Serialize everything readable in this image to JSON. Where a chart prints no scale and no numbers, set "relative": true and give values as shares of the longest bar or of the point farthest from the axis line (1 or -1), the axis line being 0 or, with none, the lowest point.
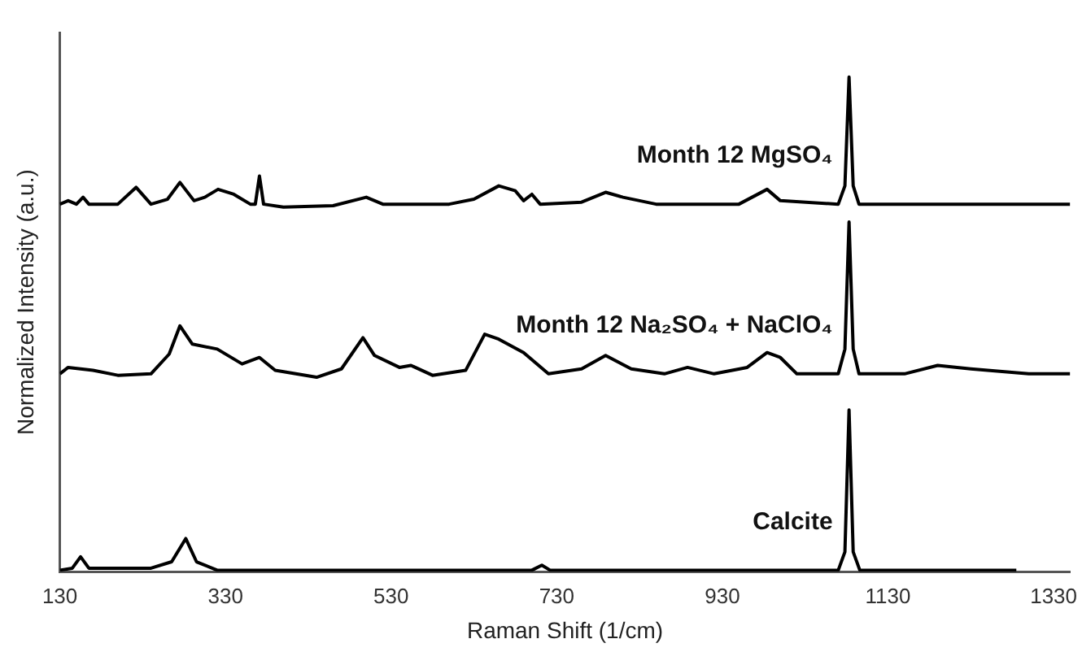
{
  "chart_data": {
    "type": "line",
    "xlabel": "Raman Shift (1/cm)",
    "ylabel": "Normalized Intensity (a.u.)",
    "relative": true,
    "xlim": [
      130,
      1350
    ],
    "xticks": [
      130,
      330,
      530,
      730,
      930,
      1130,
      1330
    ],
    "grid": false,
    "legend": false,
    "marker": "none",
    "line_style": "solid",
    "series": [
      {
        "name": "Month 12 MgSO₄",
        "color": "#000000",
        "x": [
          130,
          140,
          150,
          158,
          165,
          200,
          222,
          240,
          260,
          275,
          292,
          305,
          321,
          340,
          360,
          366,
          371,
          376,
          400,
          460,
          500,
          520,
          600,
          630,
          660,
          680,
          690,
          700,
          710,
          760,
          789,
          810,
          850,
          950,
          984,
          1000,
          1070,
          1078,
          1083,
          1088,
          1095,
          1200,
          1350
        ],
        "values": [
          0.743,
          0.75,
          0.743,
          0.757,
          0.743,
          0.743,
          0.777,
          0.743,
          0.753,
          0.787,
          0.75,
          0.757,
          0.773,
          0.763,
          0.743,
          0.743,
          0.8,
          0.743,
          0.737,
          0.74,
          0.757,
          0.743,
          0.743,
          0.753,
          0.78,
          0.77,
          0.75,
          0.763,
          0.743,
          0.747,
          0.767,
          0.757,
          0.743,
          0.743,
          0.773,
          0.75,
          0.743,
          0.78,
          1.0,
          0.78,
          0.743,
          0.743,
          0.743
        ]
      },
      {
        "name": "Month 12 Na₂SO₄ + NaClO₄",
        "color": "#000000",
        "x": [
          130,
          140,
          170,
          200,
          240,
          262,
          275,
          290,
          320,
          350,
          371,
          390,
          440,
          470,
          496,
          510,
          540,
          554,
          580,
          620,
          643,
          660,
          690,
          720,
          760,
          789,
          820,
          860,
          888,
          920,
          960,
          984,
          1000,
          1020,
          1070,
          1078,
          1083,
          1088,
          1095,
          1150,
          1190,
          1230,
          1300,
          1350
        ],
        "values": [
          0.4,
          0.413,
          0.407,
          0.397,
          0.4,
          0.44,
          0.497,
          0.46,
          0.45,
          0.42,
          0.433,
          0.407,
          0.393,
          0.41,
          0.473,
          0.437,
          0.413,
          0.417,
          0.397,
          0.407,
          0.48,
          0.47,
          0.443,
          0.4,
          0.41,
          0.437,
          0.41,
          0.4,
          0.413,
          0.4,
          0.413,
          0.443,
          0.433,
          0.4,
          0.4,
          0.45,
          0.707,
          0.45,
          0.4,
          0.4,
          0.417,
          0.41,
          0.4,
          0.4
        ]
      },
      {
        "name": "Calcite",
        "color": "#000000",
        "x": [
          130,
          145,
          155,
          165,
          240,
          265,
          282,
          295,
          320,
          700,
          712,
          722,
          1070,
          1078,
          1083,
          1088,
          1096,
          1285
        ],
        "values": [
          0.003,
          0.007,
          0.03,
          0.007,
          0.007,
          0.02,
          0.067,
          0.02,
          0.003,
          0.003,
          0.013,
          0.003,
          0.003,
          0.04,
          0.327,
          0.04,
          0.003,
          0.003
        ]
      }
    ]
  }
}
